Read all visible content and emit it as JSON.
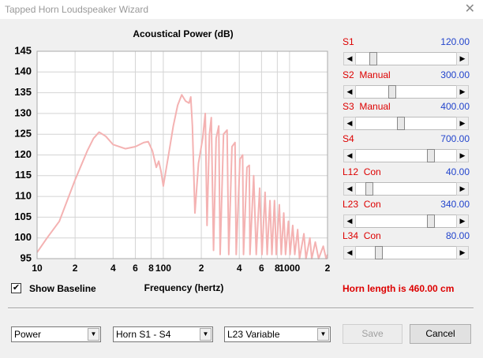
{
  "window": {
    "title": "Tapped Horn Loudspeaker Wizard"
  },
  "chart_data": {
    "type": "line",
    "title": "Acoustical Power (dB)",
    "xlabel": "Frequency (hertz)",
    "xscale": "log",
    "grid": true,
    "color": "#f4b2b2",
    "xlim": [
      10,
      2000
    ],
    "ylim": [
      95,
      145
    ],
    "xticks": [
      10,
      {
        "value": 20,
        "label": "2"
      },
      {
        "value": 40,
        "label": "4"
      },
      {
        "value": 60,
        "label": "6"
      },
      {
        "value": 80,
        "label": "8"
      },
      100,
      {
        "value": 200,
        "label": "2"
      },
      {
        "value": 400,
        "label": "4"
      },
      {
        "value": 600,
        "label": "6"
      },
      {
        "value": 800,
        "label": "8"
      },
      1000,
      {
        "value": 2000,
        "label": "2"
      }
    ],
    "yticks": [
      95,
      100,
      105,
      110,
      115,
      120,
      125,
      130,
      135,
      140,
      145
    ],
    "x": [
      10,
      12,
      15,
      20,
      25,
      28,
      31,
      35,
      40,
      50,
      60,
      70,
      76,
      82,
      88,
      92,
      96,
      100,
      110,
      120,
      130,
      140,
      150,
      160,
      165,
      170,
      178,
      190,
      205,
      215,
      222,
      232,
      240,
      250,
      262,
      275,
      282,
      300,
      320,
      330,
      350,
      370,
      378,
      405,
      425,
      432,
      460,
      480,
      486,
      520,
      545,
      580,
      605,
      640,
      665,
      700,
      725,
      760,
      785,
      830,
      860,
      900,
      930,
      980,
      1010,
      1060,
      1100,
      1160,
      1200,
      1300,
      1350,
      1450,
      1500,
      1600,
      1700,
      1850,
      1950,
      2000
    ],
    "y": [
      96.5,
      100,
      104,
      114,
      121,
      124,
      125.5,
      124.5,
      122.5,
      121.5,
      122,
      123,
      123.2,
      121,
      117,
      118.5,
      116,
      112.5,
      120,
      127,
      132,
      134.5,
      133,
      132.5,
      134,
      127,
      106,
      118,
      124,
      130,
      103,
      125,
      129,
      97,
      124,
      127,
      96,
      125,
      126,
      96,
      122,
      123,
      96,
      119,
      120,
      96,
      117,
      117.5,
      96,
      115,
      96,
      112,
      96,
      111,
      96,
      109,
      96,
      109,
      96,
      108,
      96,
      106,
      96,
      104,
      96,
      103,
      96,
      102,
      95,
      101,
      95,
      100,
      95,
      99,
      95,
      98,
      95,
      96
    ]
  },
  "sliders": [
    {
      "label": "S1",
      "value": "120.00"
    },
    {
      "label": "S2  Manual",
      "value": "300.00"
    },
    {
      "label": "S3  Manual",
      "value": "400.00"
    },
    {
      "label": "S4",
      "value": "700.00"
    },
    {
      "label": "L12  Con",
      "value": "40.00"
    },
    {
      "label": "L23  Con",
      "value": "340.00"
    },
    {
      "label": "L34  Con",
      "value": "80.00"
    }
  ],
  "show_baseline": {
    "label": "Show Baseline",
    "checked": true
  },
  "horn_length": "Horn length is 460.00 cm",
  "dropdowns": [
    "Power",
    "Horn S1 - S4",
    "L23 Variable"
  ],
  "buttons": [
    "Save",
    "Cancel"
  ]
}
